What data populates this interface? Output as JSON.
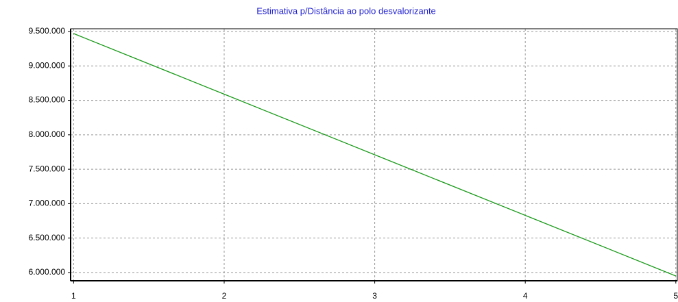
{
  "chart_data": {
    "type": "line",
    "title": "Estimativa p/Distância ao polo desvalorizante",
    "x": [
      1,
      2,
      3,
      4,
      5
    ],
    "values": [
      9470000,
      8590000,
      7710000,
      6830000,
      5950000
    ],
    "color": "#1a9a1a",
    "xlim": [
      0.98,
      5.01
    ],
    "xticks": [
      1,
      2,
      3,
      4,
      5
    ],
    "ylim": [
      5880000,
      9540000
    ],
    "yticks": [
      {
        "value": 6000000,
        "label": "6.000.000"
      },
      {
        "value": 6500000,
        "label": "6.500.000"
      },
      {
        "value": 7000000,
        "label": "7.000.000"
      },
      {
        "value": 7500000,
        "label": "7.500.000"
      },
      {
        "value": 8000000,
        "label": "8.000.000"
      },
      {
        "value": 8500000,
        "label": "8.500.000"
      },
      {
        "value": 9000000,
        "label": "9.000.000"
      },
      {
        "value": 9500000,
        "label": "9.500.000"
      }
    ],
    "grid": true
  }
}
